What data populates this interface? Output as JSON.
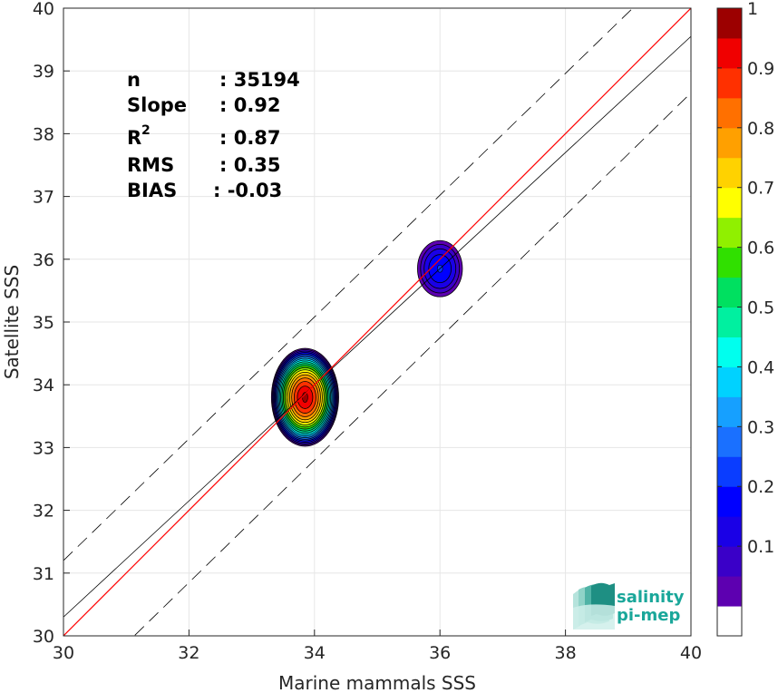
{
  "chart_data": {
    "type": "contour",
    "xlabel": "Marine mammals SSS",
    "ylabel": "Satellite SSS",
    "xlim": [
      30,
      40
    ],
    "ylim": [
      30,
      40
    ],
    "xticks": [
      30,
      32,
      34,
      36,
      38,
      40
    ],
    "yticks": [
      30,
      31,
      32,
      33,
      34,
      35,
      36,
      37,
      38,
      39,
      40
    ],
    "grid": true,
    "stats": [
      {
        "label": "n",
        "value": ": 35194"
      },
      {
        "label": "Slope",
        "value": ": 0.92"
      },
      {
        "label": "R",
        "sup": "2",
        "value": ": 0.87"
      },
      {
        "label": "RMS",
        "value": ": 0.35"
      },
      {
        "label": "BIAS",
        "value": ": -0.03"
      }
    ],
    "lines": {
      "identity": {
        "x": [
          30,
          40
        ],
        "y": [
          30,
          40
        ],
        "color": "#ff0000"
      },
      "regression": {
        "x": [
          30,
          40
        ],
        "y": [
          30.3,
          39.55
        ],
        "color": "#000000"
      },
      "upper_bound": {
        "x": [
          30,
          40
        ],
        "y": [
          31.2,
          40.9
        ],
        "style": "dashed"
      },
      "lower_bound": {
        "x": [
          30,
          40
        ],
        "y": [
          28.9,
          38.65
        ],
        "style": "dashed"
      }
    },
    "density_clusters": [
      {
        "center_x": 33.85,
        "center_y": 33.8,
        "radius_x": 0.55,
        "radius_y": 0.8,
        "peak": 1.0
      },
      {
        "center_x": 36.0,
        "center_y": 35.85,
        "radius_x": 0.4,
        "radius_y": 0.5,
        "peak": 0.25
      }
    ],
    "colorbar": {
      "ticks": [
        "0.1",
        "0.2",
        "0.3",
        "0.4",
        "0.5",
        "0.6",
        "0.7",
        "0.8",
        "0.9",
        "1"
      ],
      "levels": [
        0,
        0.05,
        0.1,
        0.15,
        0.2,
        0.25,
        0.3,
        0.35,
        0.4,
        0.45,
        0.5,
        0.55,
        0.6,
        0.65,
        0.7,
        0.75,
        0.8,
        0.85,
        0.9,
        0.95,
        1.0
      ],
      "colors": [
        "#ffffff",
        "#5d00b0",
        "#3a00c8",
        "#1a00e6",
        "#0000ff",
        "#0a3dff",
        "#1a70ff",
        "#16a0ff",
        "#00d2ff",
        "#00ffee",
        "#00f0a0",
        "#00e060",
        "#30e000",
        "#90f000",
        "#ffff00",
        "#ffd200",
        "#ffa000",
        "#ff7000",
        "#ff3000",
        "#f00000",
        "#9c0000"
      ]
    },
    "logo": {
      "line1": "salinity",
      "line2": "pi-mep"
    }
  }
}
